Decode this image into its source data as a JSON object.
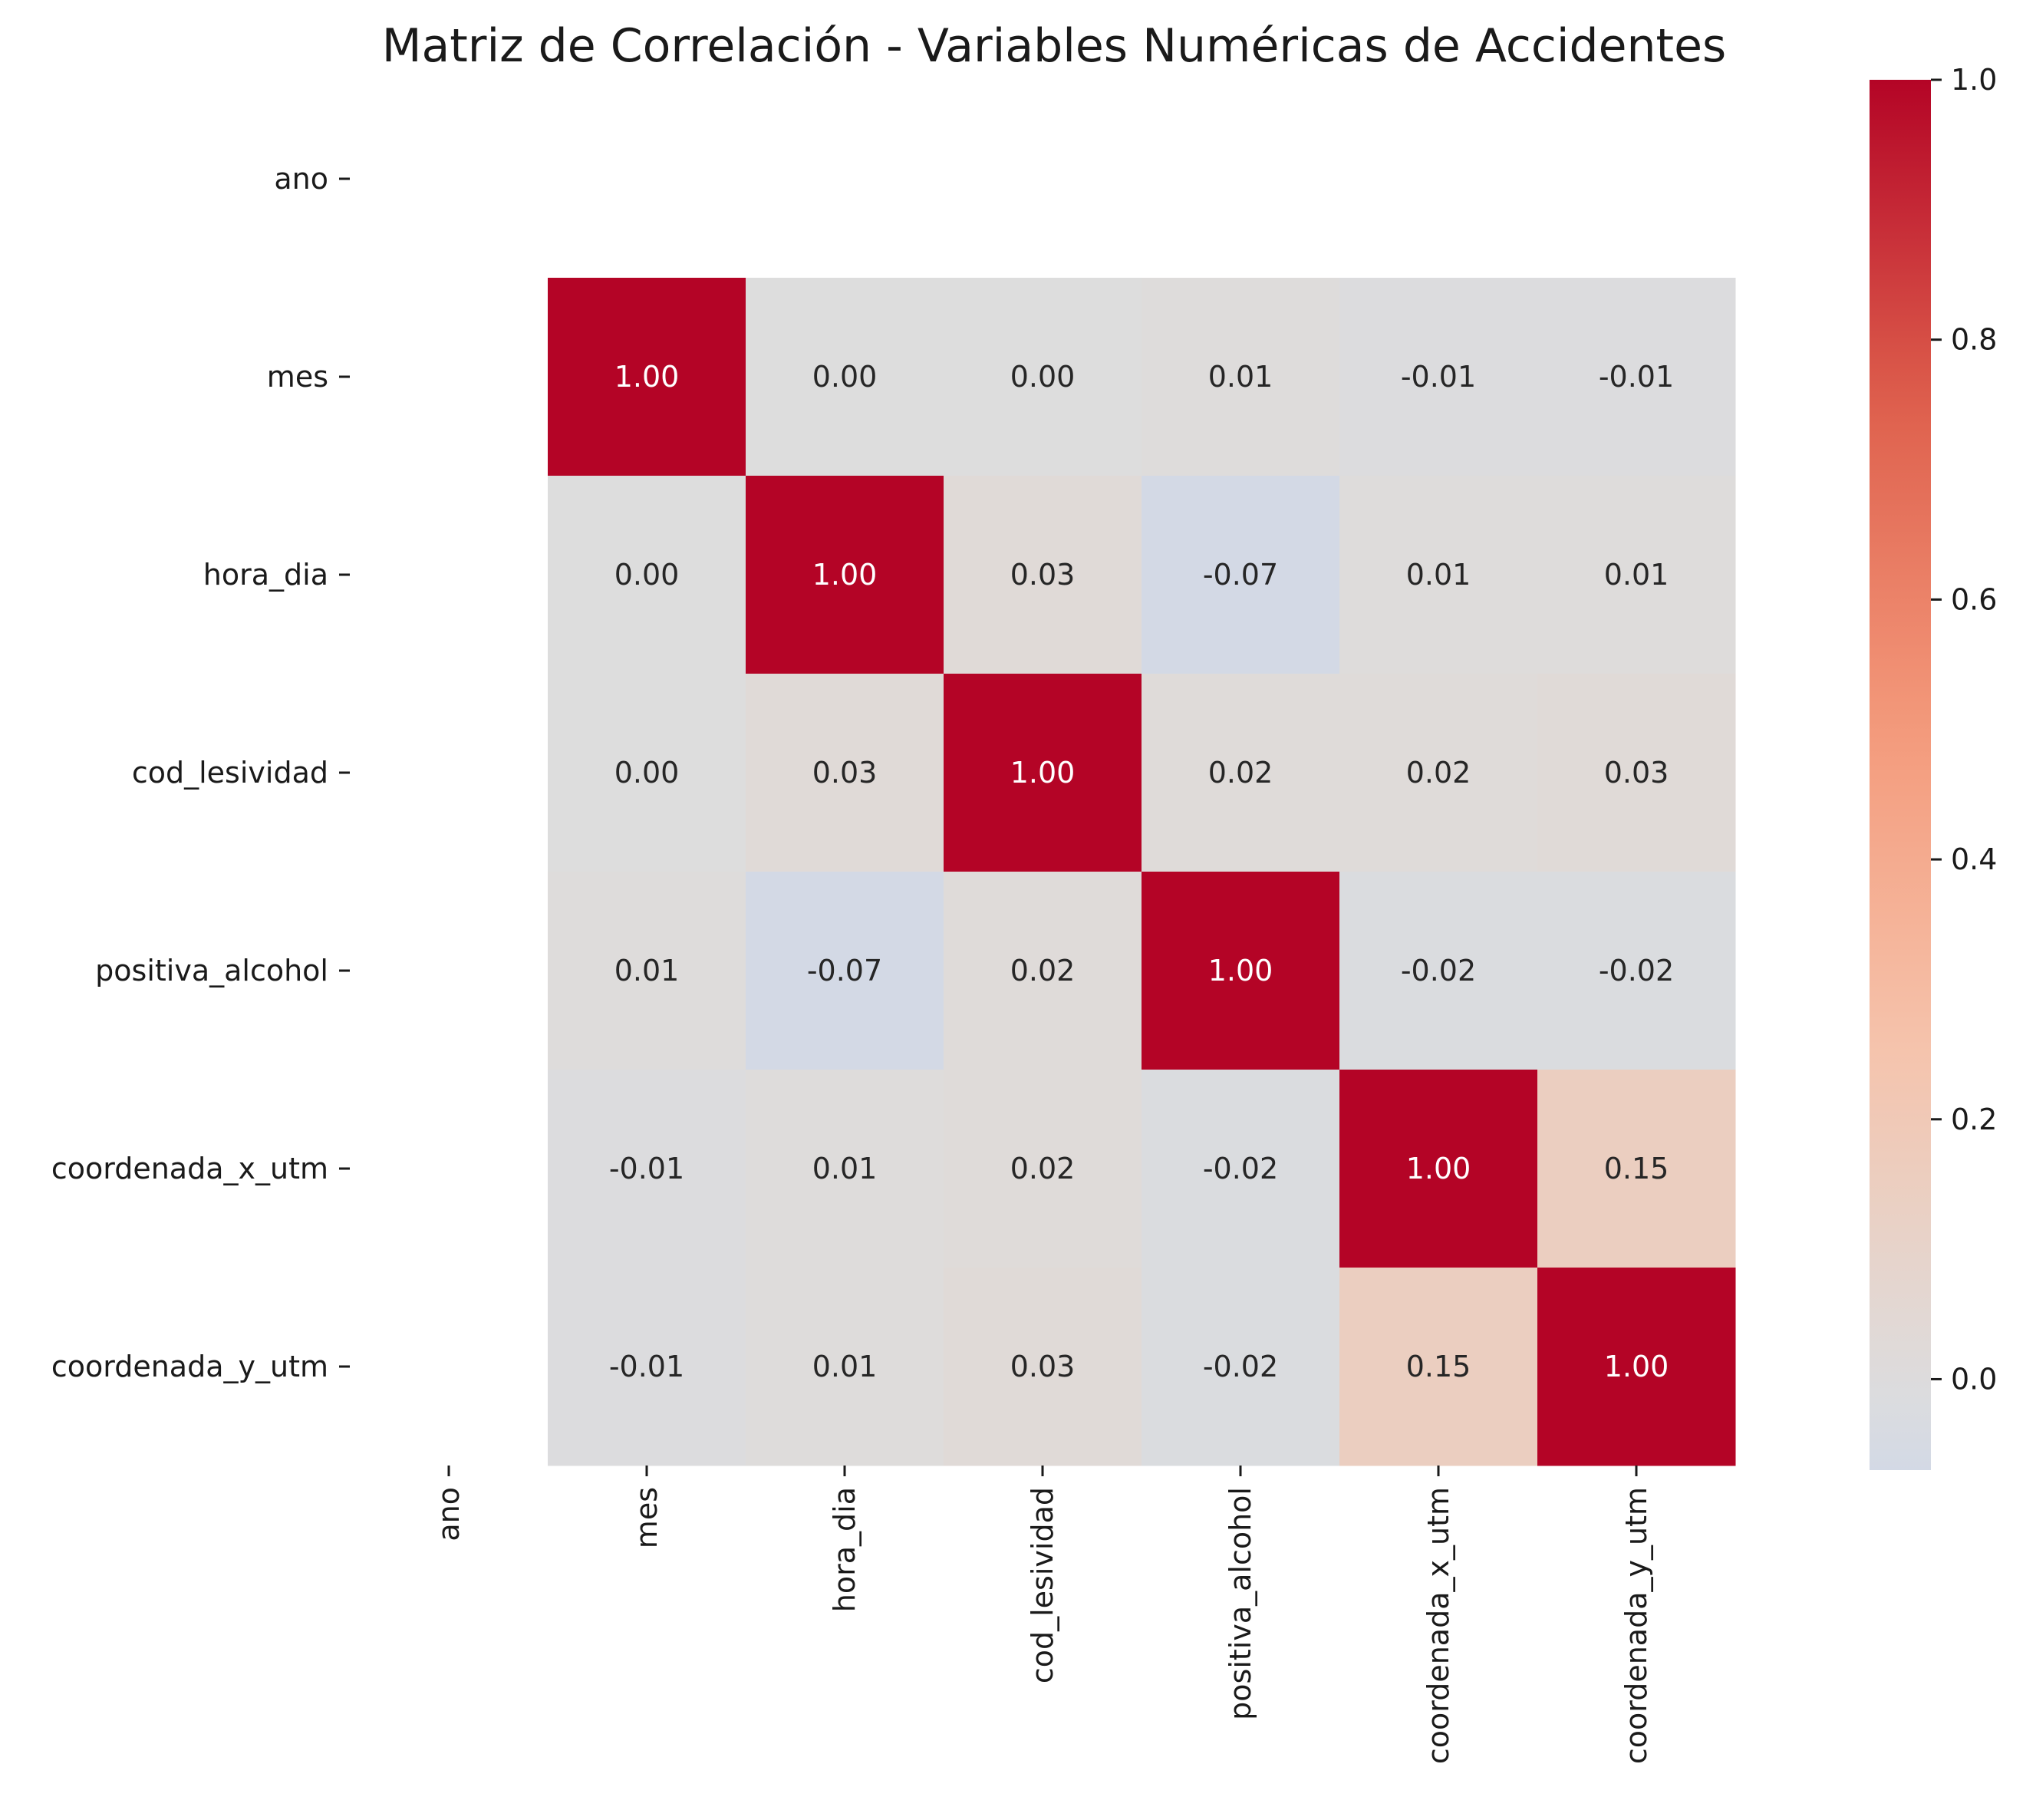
{
  "chart_data": {
    "type": "heatmap",
    "title": "Matriz de Correlación - Variables Numéricas de Accidentes",
    "variables": [
      "ano",
      "mes",
      "hora_dia",
      "cod_lesividad",
      "positiva_alcohol",
      "coordenada_x_utm",
      "coordenada_y_utm"
    ],
    "matrix": [
      [
        null,
        null,
        null,
        null,
        null,
        null,
        null
      ],
      [
        null,
        1.0,
        0.0,
        -0.0,
        0.01,
        -0.01,
        -0.01
      ],
      [
        null,
        0.0,
        1.0,
        0.03,
        -0.07,
        0.01,
        0.01
      ],
      [
        null,
        -0.0,
        0.03,
        1.0,
        0.02,
        0.02,
        0.03
      ],
      [
        null,
        0.01,
        -0.07,
        0.02,
        1.0,
        -0.02,
        -0.02
      ],
      [
        null,
        -0.01,
        0.01,
        0.02,
        -0.02,
        1.0,
        0.15
      ],
      [
        null,
        -0.01,
        0.01,
        0.03,
        -0.02,
        0.15,
        1.0
      ]
    ],
    "value_format": "0.00",
    "colormap": "coolwarm",
    "center": 0.0,
    "vmin": -0.07,
    "vmax": 1.0,
    "colorbar_ticks": [
      "0.0",
      "0.2",
      "0.4",
      "0.6",
      "0.8",
      "1.0"
    ],
    "colorbar_tick_values": [
      0.0,
      0.2,
      0.4,
      0.6,
      0.8,
      1.0
    ],
    "colors": {
      "strong_positive": "#b40426",
      "neutral": "#dddddd",
      "negative_end": "#d4dbe6"
    }
  }
}
